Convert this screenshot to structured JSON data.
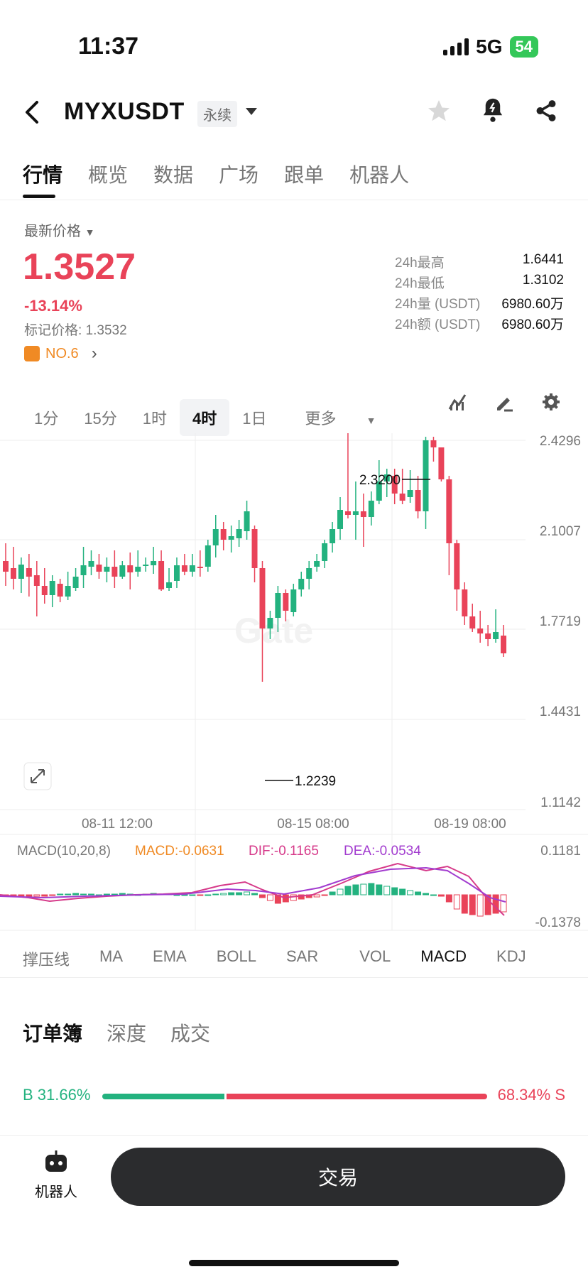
{
  "status": {
    "time": "11:37",
    "network": "5G",
    "battery": "54"
  },
  "header": {
    "symbol": "MYXUSDT",
    "contract_type": "永续"
  },
  "tabs": [
    "行情",
    "概览",
    "数据",
    "广场",
    "跟单",
    "机器人"
  ],
  "price_panel": {
    "latest_label": "最新价格",
    "price": "1.3527",
    "change": "-13.14%",
    "mark_price": "标记价格: 1.3532",
    "rank": "NO.6"
  },
  "stats": [
    {
      "label": "24h最高",
      "value": "1.6441"
    },
    {
      "label": "24h最低",
      "value": "1.3102"
    },
    {
      "label": "24h量 (USDT)",
      "value": "6980.60万"
    },
    {
      "label": "24h额 (USDT)",
      "value": "6980.60万"
    }
  ],
  "intervals": [
    "1分",
    "15分",
    "1时",
    "4时",
    "1日",
    "更多"
  ],
  "active_interval": "4时",
  "chart": {
    "watermark": "Gate",
    "y_ticks": [
      "2.4296",
      "2.1007",
      "1.7719",
      "1.4431",
      "1.1142"
    ],
    "x_ticks": [
      "08-11 12:00",
      "08-15 08:00",
      "08-19 08:00"
    ],
    "high_label": "2.3200",
    "low_label": "1.2239",
    "macd_title": "MACD(10,20,8)",
    "macd_value": "MACD:-0.0631",
    "dif_value": "DIF:-0.1165",
    "dea_value": "DEA:-0.0534",
    "macd_ticks": [
      "0.1181",
      "-0.1378"
    ]
  },
  "indicator_tabs": [
    "撑压线",
    "MA",
    "EMA",
    "BOLL",
    "SAR",
    "VOL",
    "MACD",
    "KDJ"
  ],
  "active_indicator": "MACD",
  "orderbook_tabs": [
    "订单簿",
    "深度",
    "成交"
  ],
  "ratio": {
    "buy": "B 31.66%",
    "sell": "68.34% S",
    "buy_pct": 31.66
  },
  "bottom": {
    "bot_label": "机器人",
    "trade_label": "交易"
  },
  "colors": {
    "up": "#23b27f",
    "down": "#e94359",
    "orange": "#f08a24"
  }
}
